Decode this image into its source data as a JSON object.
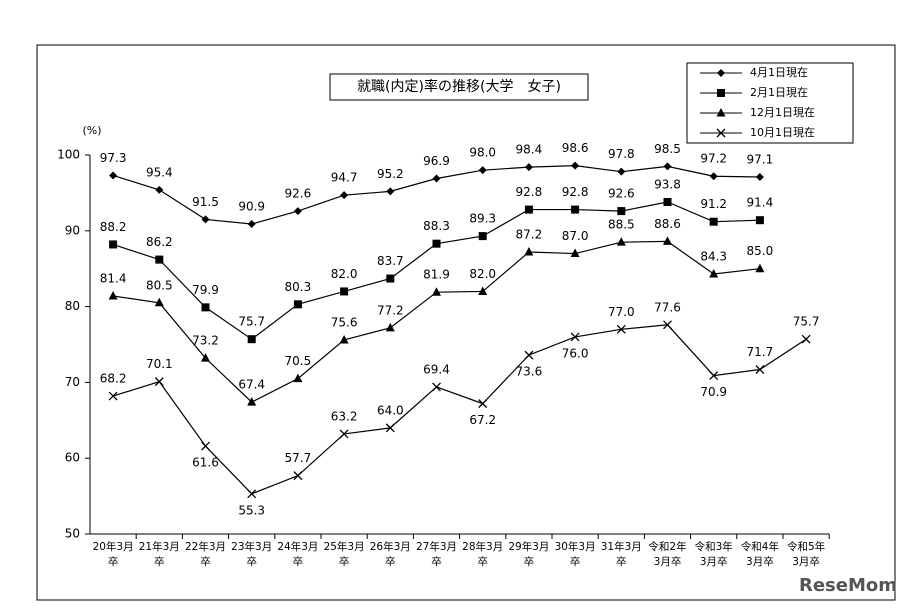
{
  "chart_data": {
    "type": "line",
    "title": "就職(内定)率の推移(大学　女子)",
    "y_unit": "(%)",
    "watermark": "ReseMom",
    "categories": [
      "20年3月\n卒",
      "21年3月\n卒",
      "22年3月\n卒",
      "23年3月\n卒",
      "24年3月\n卒",
      "25年3月\n卒",
      "26年3月\n卒",
      "27年3月\n卒",
      "28年3月\n卒",
      "29年3月\n卒",
      "30年3月\n卒",
      "31年3月\n卒",
      "令和2年\n3月卒",
      "令和3年\n3月卒",
      "令和4年\n3月卒",
      "令和5年\n3月卒"
    ],
    "ylim": [
      50,
      100
    ],
    "yticks": [
      50,
      60,
      70,
      80,
      90,
      100
    ],
    "grid": false,
    "legend": "top-right",
    "series": [
      {
        "name": "4月1日現在",
        "color": "#000000",
        "marker": "diamond",
        "values": [
          97.3,
          95.4,
          91.5,
          90.9,
          92.6,
          94.7,
          95.2,
          96.9,
          98.0,
          98.4,
          98.6,
          97.8,
          98.5,
          97.2,
          97.1,
          null
        ],
        "value_labels": [
          "97.3",
          "95.4",
          "91.5",
          "90.9",
          "92.6",
          "94.7",
          "95.2",
          "96.9",
          "98.0",
          "98.4",
          "98.6",
          "97.8",
          "98.5",
          "97.2",
          "97.1",
          null
        ]
      },
      {
        "name": "2月1日現在",
        "color": "#000000",
        "marker": "square",
        "values": [
          88.2,
          86.2,
          79.9,
          75.7,
          80.3,
          82.0,
          83.7,
          88.3,
          89.3,
          92.8,
          92.8,
          92.6,
          93.8,
          91.2,
          91.4,
          null
        ],
        "value_labels": [
          "88.2",
          "86.2",
          "79.9",
          "75.7",
          "80.3",
          "82.0",
          "83.7",
          "88.3",
          "89.3",
          "92.8",
          "92.8",
          "92.6",
          "93.8",
          "91.2",
          "91.4",
          null
        ]
      },
      {
        "name": "12月1日現在",
        "color": "#000000",
        "marker": "triangle",
        "values": [
          81.4,
          80.5,
          73.2,
          67.4,
          70.5,
          75.6,
          77.2,
          81.9,
          82.0,
          87.2,
          87.0,
          88.5,
          88.6,
          84.3,
          85.0,
          null
        ],
        "value_labels": [
          "81.4",
          "80.5",
          "73.2",
          "67.4",
          "70.5",
          "75.6",
          "77.2",
          "81.9",
          "82.0",
          "87.2",
          "87.0",
          "88.5",
          "88.6",
          "84.3",
          "85.0",
          null
        ]
      },
      {
        "name": "10月1日現在",
        "color": "#000000",
        "marker": "x",
        "values": [
          68.2,
          70.1,
          61.6,
          55.3,
          57.7,
          63.2,
          64.0,
          69.4,
          67.2,
          73.6,
          76.0,
          77.0,
          77.6,
          70.9,
          71.7,
          75.7
        ],
        "value_labels": [
          "68.2",
          "70.1",
          "61.6",
          "55.3",
          "57.7",
          "63.2",
          "64.0",
          "69.4",
          "67.2",
          "73.6",
          "76.0",
          "77.0",
          "77.6",
          "70.9",
          "71.7",
          "75.7"
        ]
      }
    ]
  }
}
